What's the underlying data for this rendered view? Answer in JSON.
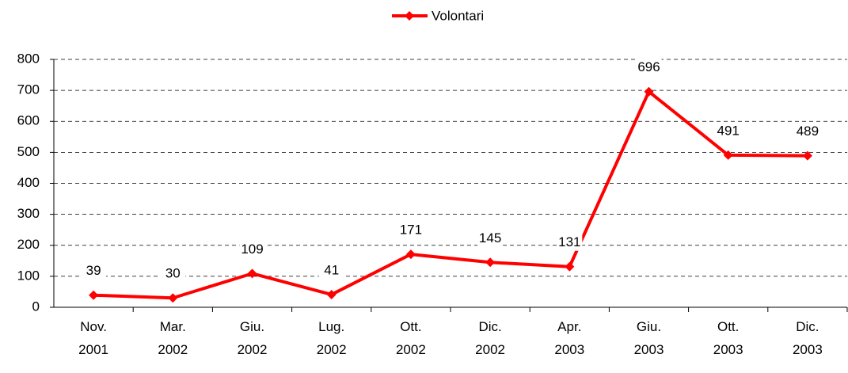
{
  "chart_data": {
    "type": "line",
    "categories": [
      "Nov. 2001",
      "Mar. 2002",
      "Giu. 2002",
      "Lug. 2002",
      "Ott. 2002",
      "Dic. 2002",
      "Apr. 2003",
      "Giu. 2003",
      "Ott. 2003",
      "Dic. 2003"
    ],
    "series": [
      {
        "name": "Volontari",
        "color": "#ff0000",
        "values": [
          39,
          30,
          109,
          41,
          171,
          145,
          131,
          696,
          491,
          489
        ]
      }
    ],
    "ylim": [
      0,
      800
    ],
    "yticks": [
      0,
      100,
      200,
      300,
      400,
      500,
      600,
      700,
      800
    ],
    "grid": true,
    "legend": "top"
  }
}
